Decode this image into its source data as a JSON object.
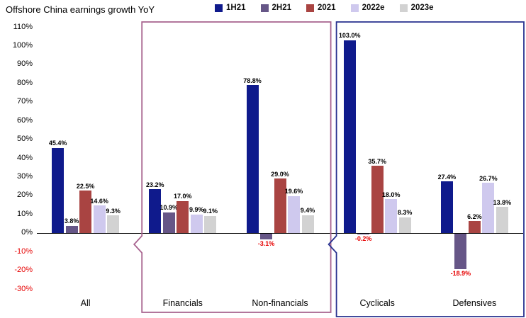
{
  "chart_data": {
    "type": "bar",
    "title": "Offshore China earnings growth YoY",
    "categories": [
      "All",
      "Financials",
      "Non-financials",
      "Cyclicals",
      "Defensives"
    ],
    "series": [
      {
        "name": "1H21",
        "color": "#0f1a8c",
        "values": [
          45.4,
          23.2,
          78.8,
          103.0,
          27.4
        ]
      },
      {
        "name": "2H21",
        "color": "#665687",
        "values": [
          3.8,
          10.9,
          -3.1,
          -0.2,
          -18.9
        ]
      },
      {
        "name": "2021",
        "color": "#a94442",
        "values": [
          22.5,
          17.0,
          29.0,
          35.7,
          6.2
        ]
      },
      {
        "name": "2022e",
        "color": "#cfc9ee",
        "values": [
          14.6,
          9.9,
          19.6,
          18.0,
          26.7
        ]
      },
      {
        "name": "2023e",
        "color": "#d2d2d2",
        "values": [
          9.3,
          9.1,
          9.4,
          8.3,
          13.8
        ]
      }
    ],
    "ylim": [
      -30,
      110
    ],
    "ytick_step": 10,
    "ytick_suffix": "%",
    "negative_color": "#e60000",
    "grid": false,
    "legend_position": "top",
    "group_boxes": [
      {
        "categories": [
          "Financials",
          "Non-financials"
        ],
        "color": "#a8638f"
      },
      {
        "categories": [
          "Cyclicals",
          "Defensives"
        ],
        "color": "#27318f"
      }
    ]
  }
}
